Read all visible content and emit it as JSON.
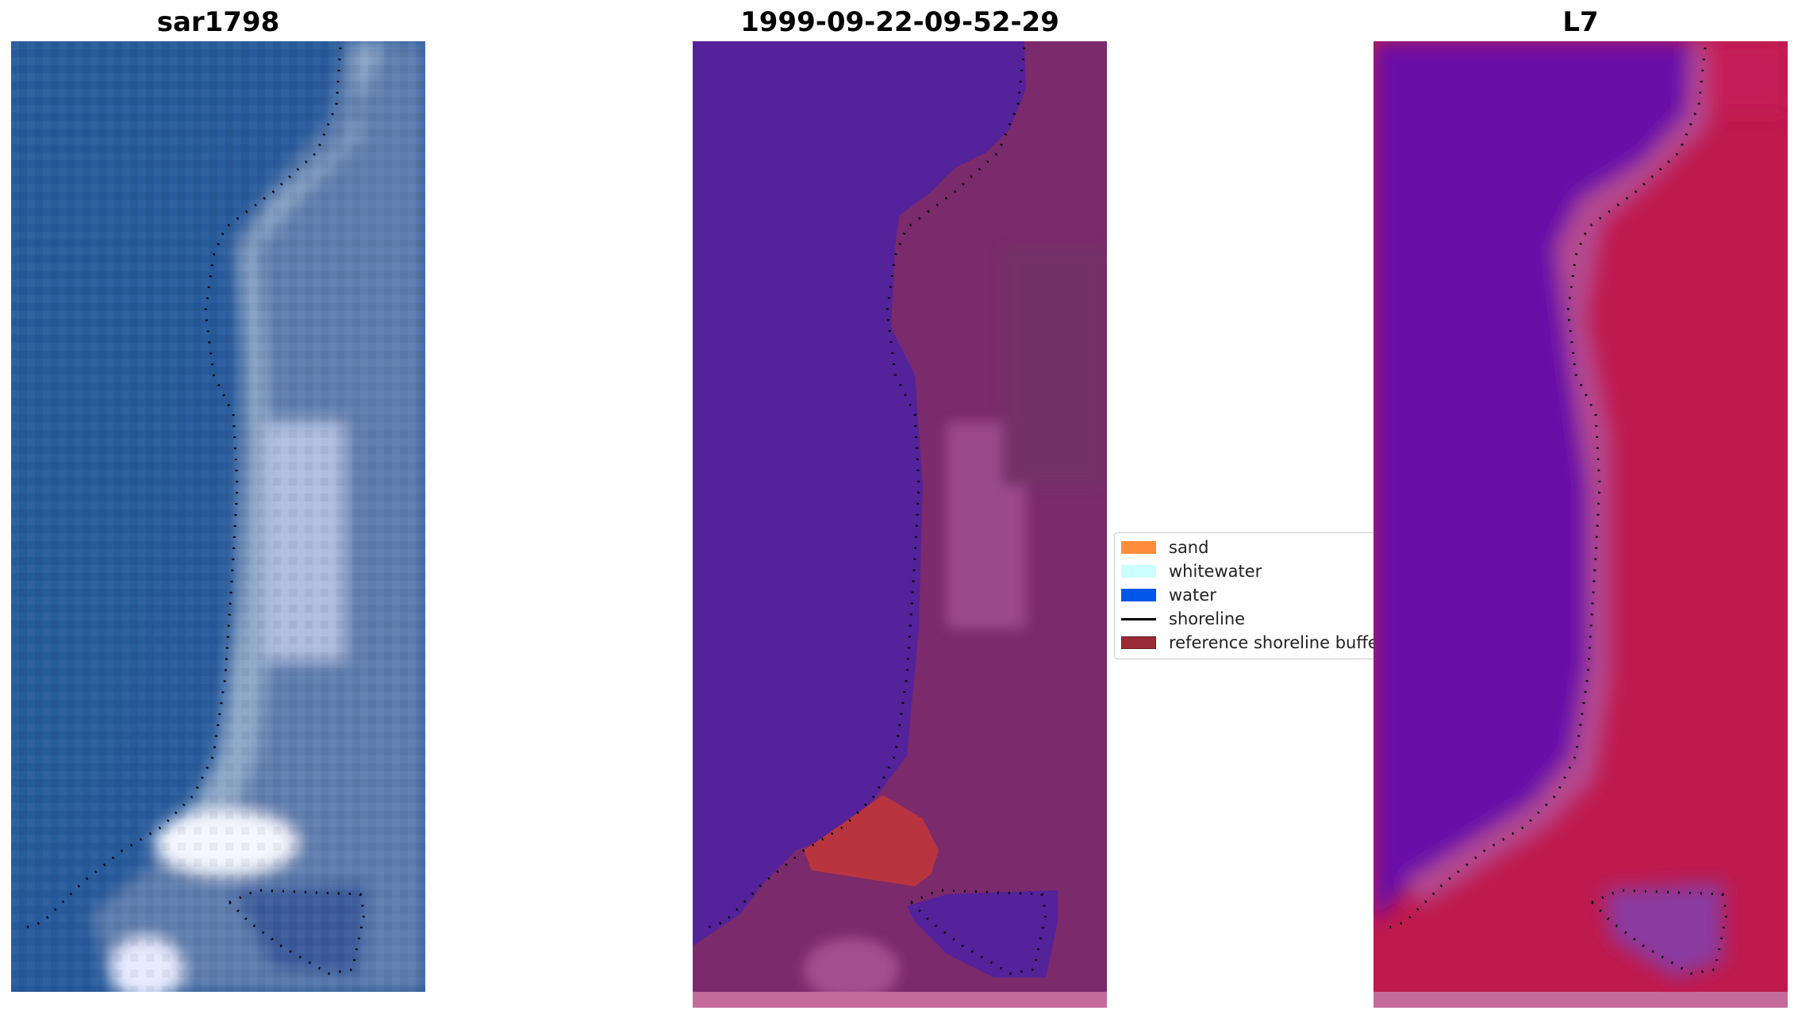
{
  "panels": [
    {
      "title": "sar1798"
    },
    {
      "title": "1999-09-22-09-52-29"
    },
    {
      "title": "L7"
    }
  ],
  "legend": {
    "items": [
      {
        "label": "sand",
        "color": "#ff8c3a",
        "kind": "patch"
      },
      {
        "label": "whitewater",
        "color": "#ccffff",
        "kind": "patch"
      },
      {
        "label": "water",
        "color": "#0057e7",
        "kind": "patch"
      },
      {
        "label": "shoreline",
        "color": "#000000",
        "kind": "line"
      },
      {
        "label": "reference shoreline buffer",
        "color": "#9b2b35",
        "kind": "patch"
      }
    ]
  },
  "colors": {
    "rgb_water": "#2a5d9e",
    "rgb_land": "#6b86b5",
    "rgb_bright": "#f2f4ff",
    "class_water": "#54229a",
    "class_land": "#7d2a6c",
    "class_buffer": "#b83540",
    "mndwi_water": "#650ea8",
    "mndwi_land": "#c1124a"
  }
}
